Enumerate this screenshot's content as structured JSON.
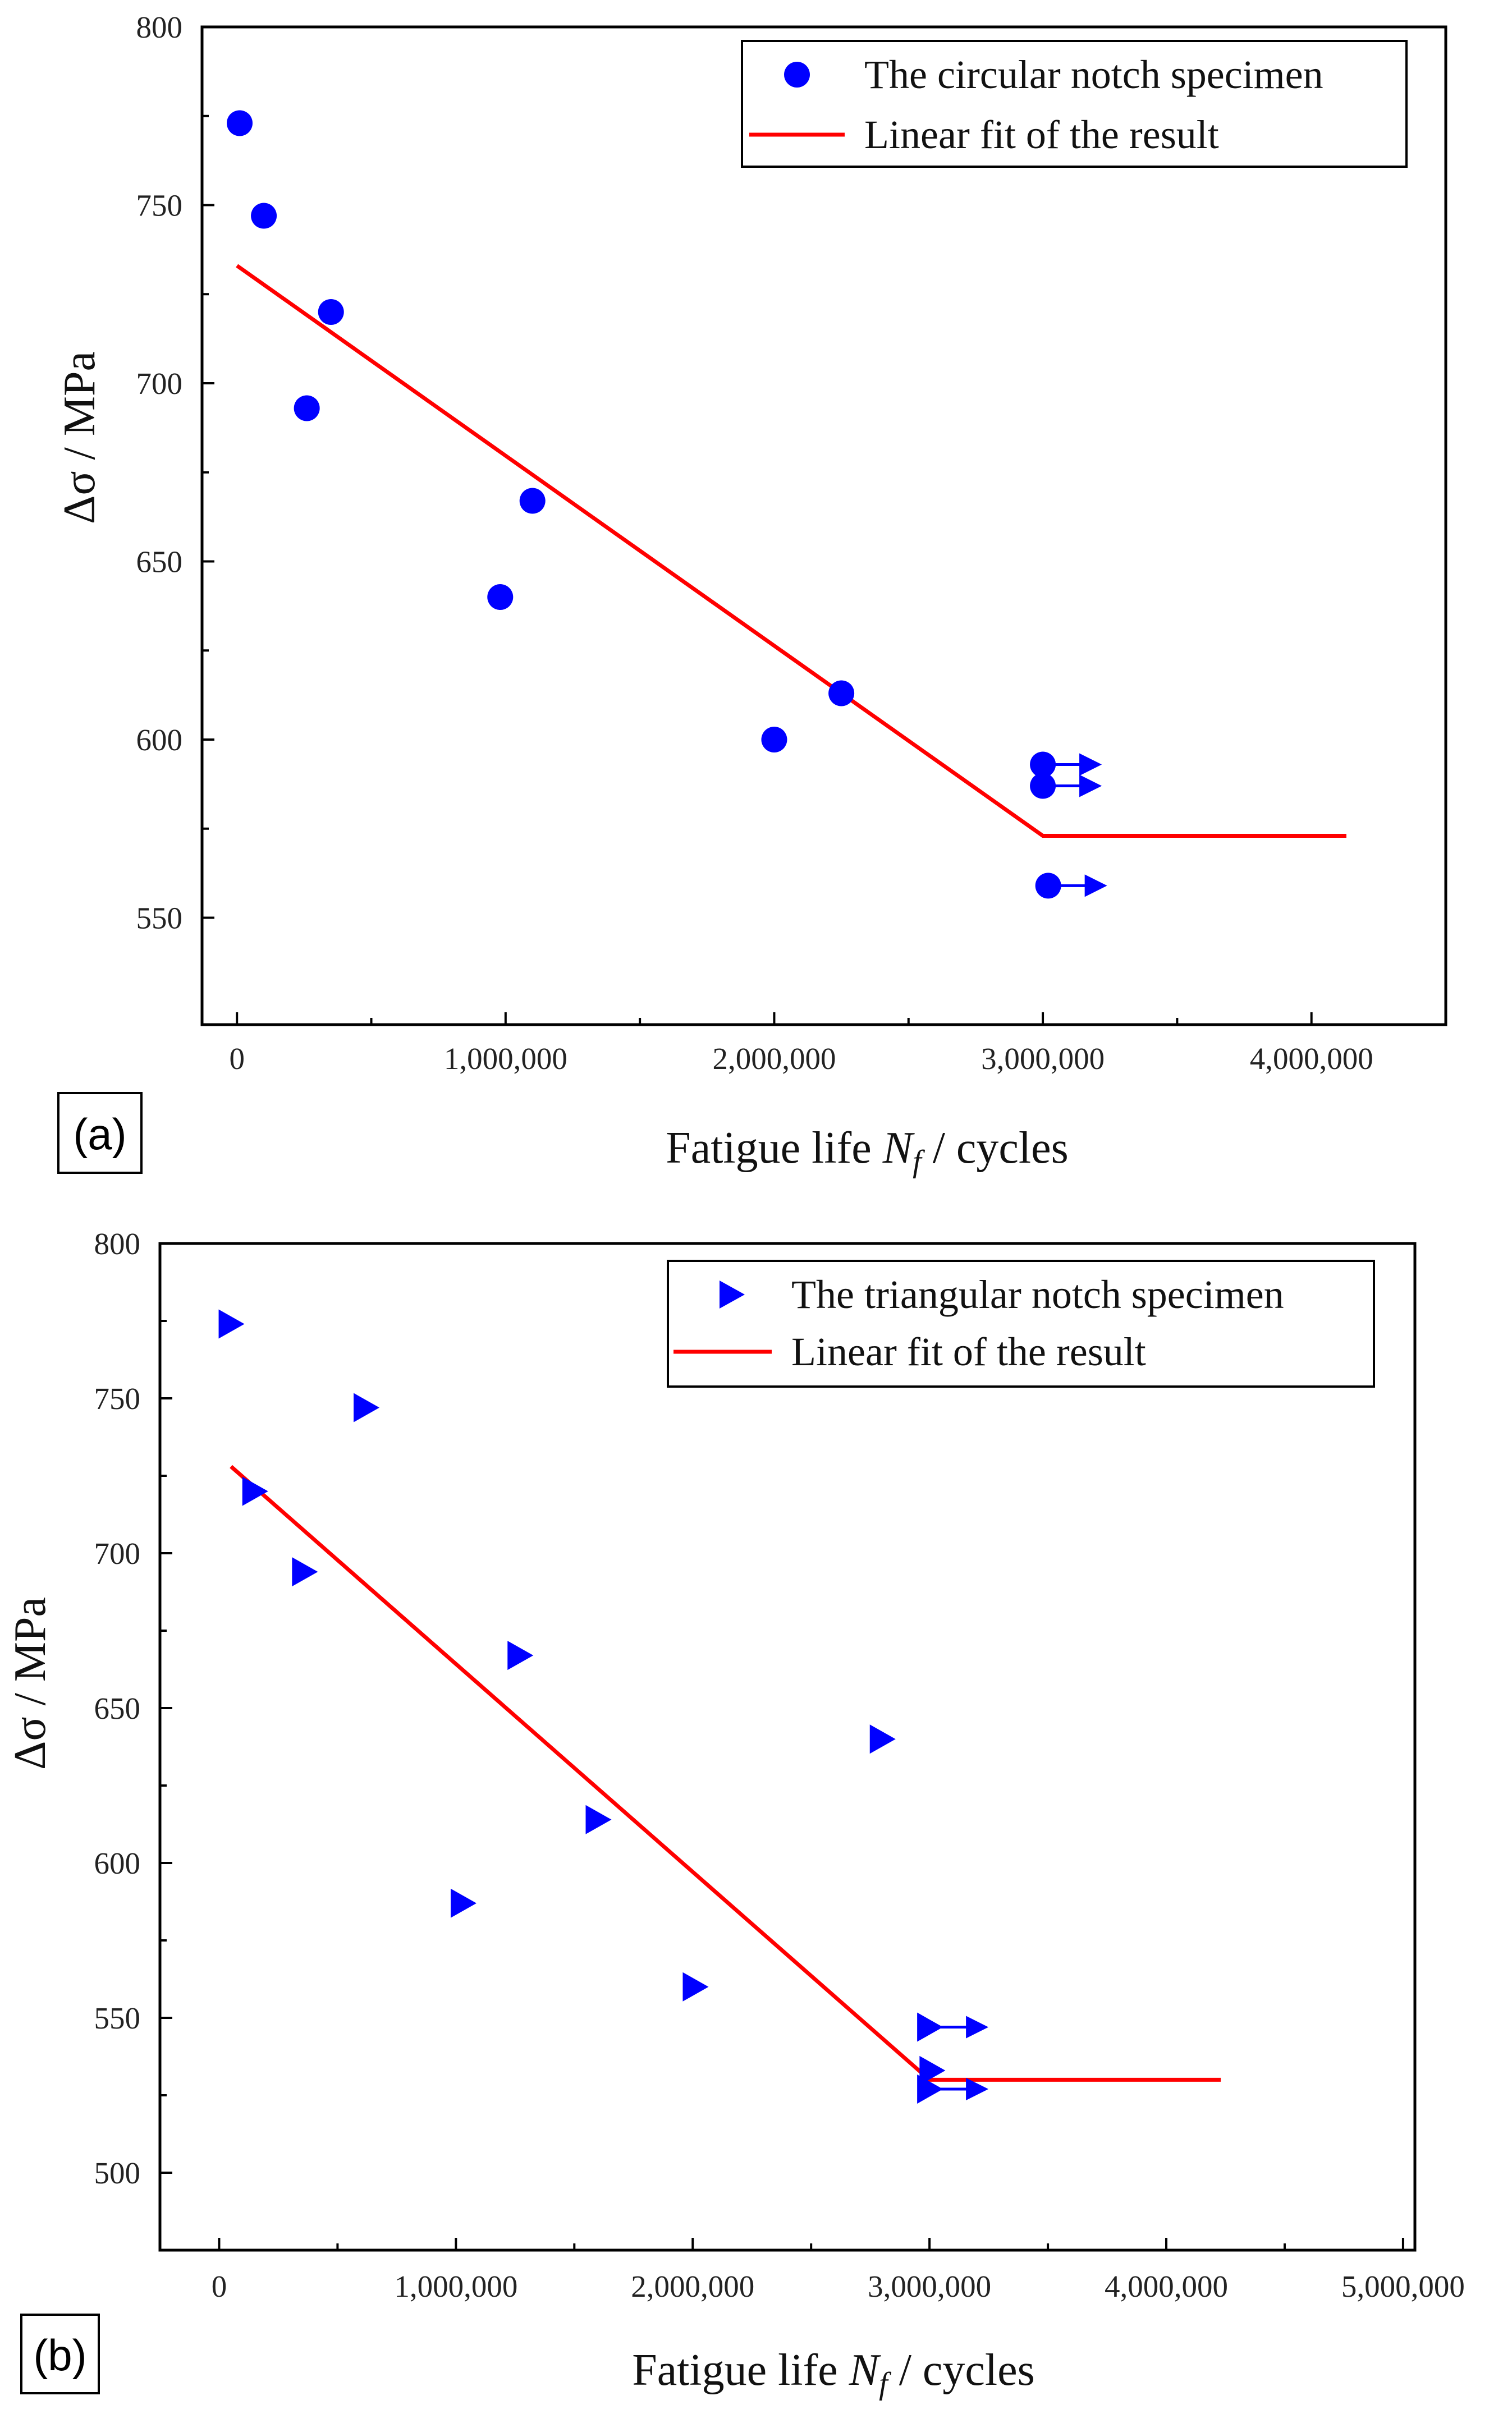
{
  "chart_data": [
    {
      "type": "scatter",
      "panel_label": "(a)",
      "xlabel": {
        "prefix": "Fatigue life ",
        "var": "N",
        "sub": "f",
        "suffix": " / cycles"
      },
      "ylabel": "Δσ / MPa",
      "xlim": [
        -130000,
        4500000
      ],
      "ylim": [
        520,
        800
      ],
      "xticks": [
        0,
        1000000,
        2000000,
        3000000,
        4000000
      ],
      "xtick_labels": [
        "0",
        "1,000,000",
        "2,000,000",
        "3,000,000",
        "4,000,000"
      ],
      "yticks": [
        550,
        600,
        650,
        700,
        750,
        800
      ],
      "ytick_labels": [
        "550",
        "600",
        "650",
        "700",
        "750",
        "800"
      ],
      "legend_position": "top-right",
      "marker_color": "#0000ff",
      "fit_color": "#ff0000",
      "series": [
        {
          "name": "The circular notch specimen",
          "marker": "circle",
          "points": [
            {
              "x": 10000,
              "y": 773
            },
            {
              "x": 100000,
              "y": 747
            },
            {
              "x": 350000,
              "y": 720
            },
            {
              "x": 260000,
              "y": 693
            },
            {
              "x": 1100000,
              "y": 667
            },
            {
              "x": 980000,
              "y": 640
            },
            {
              "x": 2250000,
              "y": 613
            },
            {
              "x": 2000000,
              "y": 600
            },
            {
              "x": 3000000,
              "y": 593,
              "runout": true
            },
            {
              "x": 3000000,
              "y": 587,
              "runout": true
            },
            {
              "x": 3020000,
              "y": 559,
              "runout": true
            }
          ]
        },
        {
          "name": "Linear fit of the result",
          "type": "line",
          "x": [
            0,
            3000000,
            4130000
          ],
          "y": [
            733,
            573,
            573
          ]
        }
      ]
    },
    {
      "type": "scatter",
      "panel_label": "(b)",
      "xlabel": {
        "prefix": "Fatigue life ",
        "var": "N",
        "sub": "f",
        "suffix": " / cycles"
      },
      "ylabel": "Δσ / MPa",
      "xlim": [
        -250000,
        5050000
      ],
      "ylim": [
        475,
        800
      ],
      "xticks": [
        0,
        1000000,
        2000000,
        3000000,
        4000000,
        5000000
      ],
      "xtick_labels": [
        "0",
        "1,000,000",
        "2,000,000",
        "3,000,000",
        "4,000,000",
        "5,000,000"
      ],
      "yticks": [
        500,
        550,
        600,
        650,
        700,
        750,
        800
      ],
      "ytick_labels": [
        "500",
        "550",
        "600",
        "650",
        "700",
        "750",
        "800"
      ],
      "legend_position": "top-right",
      "marker_color": "#0000ff",
      "fit_color": "#ff0000",
      "series": [
        {
          "name": "The triangular notch specimen",
          "marker": "triangle-right",
          "points": [
            {
              "x": 50000,
              "y": 774
            },
            {
              "x": 620000,
              "y": 747
            },
            {
              "x": 150000,
              "y": 720
            },
            {
              "x": 360000,
              "y": 694
            },
            {
              "x": 1270000,
              "y": 667
            },
            {
              "x": 2800000,
              "y": 640
            },
            {
              "x": 1600000,
              "y": 614
            },
            {
              "x": 1030000,
              "y": 587
            },
            {
              "x": 2010000,
              "y": 560
            },
            {
              "x": 3000000,
              "y": 547,
              "runout": true
            },
            {
              "x": 3010000,
              "y": 533
            },
            {
              "x": 3000000,
              "y": 527,
              "runout": true
            }
          ]
        },
        {
          "name": "Linear fit of the result",
          "type": "line",
          "x": [
            50000,
            3000000,
            4230000
          ],
          "y": [
            728,
            530,
            530
          ]
        }
      ]
    }
  ]
}
